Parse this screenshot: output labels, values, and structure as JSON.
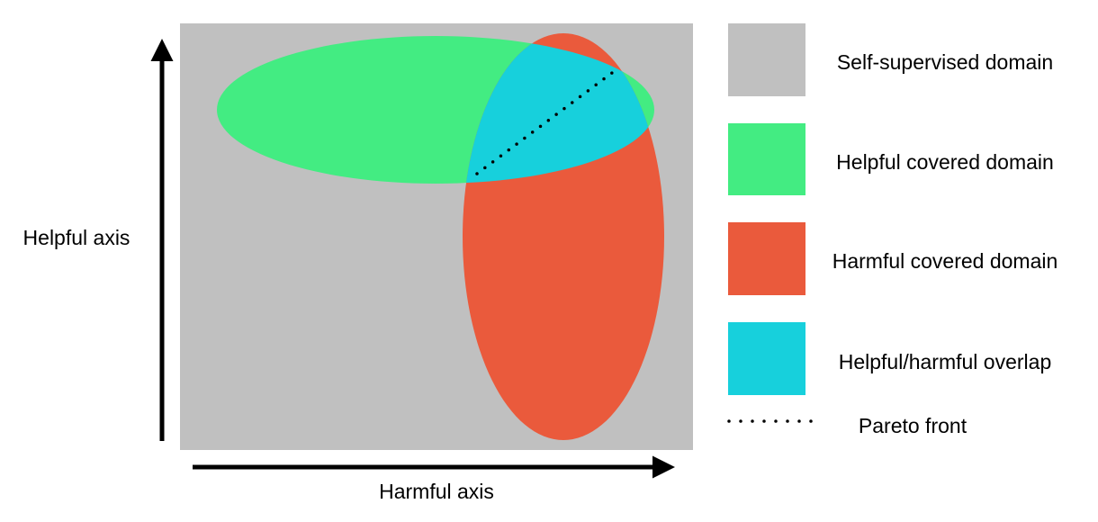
{
  "axes": {
    "y_label": "Helpful axis",
    "x_label": "Harmful axis"
  },
  "colors": {
    "self_supervised": "#c0c0c0",
    "helpful": "#43ec82",
    "harmful": "#ea5a3c",
    "overlap": "#17d0dc",
    "axis": "#000000",
    "pareto": "#000000"
  },
  "legend": {
    "self_supervised": "Self-supervised domain",
    "helpful": "Helpful covered domain",
    "harmful": "Harmful covered domain",
    "overlap": "Helpful/harmful overlap",
    "pareto": "Pareto front"
  }
}
